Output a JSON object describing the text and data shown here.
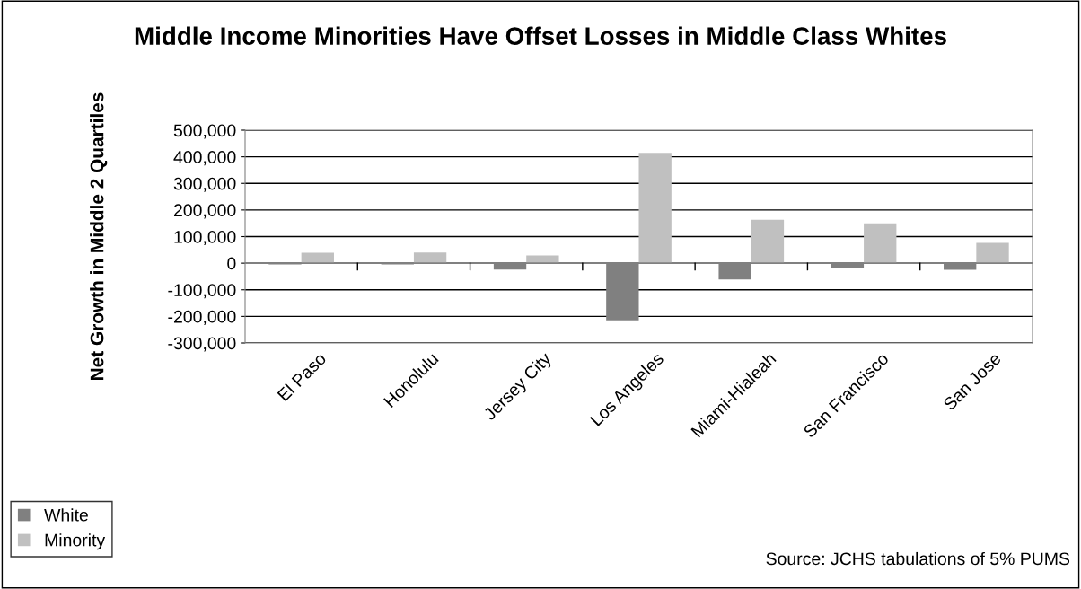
{
  "chart_data": {
    "type": "bar",
    "title": "Middle Income Minorities Have Offset Losses in Middle Class Whites",
    "ylabel": "Net Growth in Middle 2 Quartiles",
    "categories": [
      "El Paso",
      "Honolulu",
      "Jersey City",
      "Los Angeles",
      "Miami-Hialeah",
      "San Francisco",
      "San Jose"
    ],
    "series": [
      {
        "name": "White",
        "color": "#808080",
        "values": [
          -5000,
          -5000,
          -24000,
          -215000,
          -61000,
          -18000,
          -25000
        ]
      },
      {
        "name": "Minority",
        "color": "#c0c0c0",
        "values": [
          39000,
          40000,
          29000,
          415000,
          163000,
          150000,
          76000
        ]
      }
    ],
    "ylim": [
      -300000,
      500000
    ],
    "yticks": [
      {
        "value": -300000,
        "label": "-300,000"
      },
      {
        "value": -200000,
        "label": "-200,000"
      },
      {
        "value": -100000,
        "label": "-100,000"
      },
      {
        "value": 0,
        "label": "0"
      },
      {
        "value": 100000,
        "label": "100,000"
      },
      {
        "value": 200000,
        "label": "200,000"
      },
      {
        "value": 300000,
        "label": "300,000"
      },
      {
        "value": 400000,
        "label": "400,000"
      },
      {
        "value": 500000,
        "label": "500,000"
      }
    ],
    "grid": "y",
    "legend": "bottom left",
    "annotations": [
      "Source: JCHS tabulations of 5% PUMS"
    ]
  }
}
